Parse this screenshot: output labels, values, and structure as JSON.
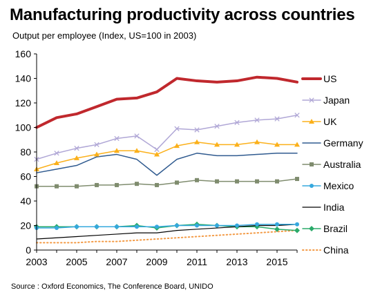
{
  "chart_data": {
    "type": "line",
    "title": "Manufacturing productivity across countries",
    "subtitle": "Output per employee (Index, US=100 in 2003)",
    "source": "Source : Oxford Economics, The Conference Board, UNIDO",
    "xlim": [
      2003,
      2016
    ],
    "x_ticks": [
      "2003",
      "2005",
      "2007",
      "2009",
      "2011",
      "2013",
      "2015"
    ],
    "ylim": [
      0,
      160
    ],
    "y_ticks": [
      "0",
      "20",
      "40",
      "60",
      "80",
      "100",
      "120",
      "140",
      "160"
    ],
    "grid": false,
    "legend_position": "right",
    "x": [
      2003,
      2004,
      2005,
      2006,
      2007,
      2008,
      2009,
      2010,
      2011,
      2012,
      2013,
      2014,
      2015,
      2016
    ],
    "series": [
      {
        "name": "US",
        "color": "#c0282d",
        "marker": "none",
        "dash": "none",
        "width": 4,
        "values": [
          100,
          108,
          111,
          117,
          123,
          124,
          129,
          140,
          138,
          137,
          138,
          141,
          140,
          137
        ]
      },
      {
        "name": "Japan",
        "color": "#b0a7d6",
        "marker": "x",
        "dash": "none",
        "width": 1.5,
        "values": [
          74,
          79,
          83,
          86,
          91,
          93,
          82,
          99,
          98,
          101,
          104,
          106,
          107,
          110
        ]
      },
      {
        "name": "UK",
        "color": "#fbb01a",
        "marker": "triangle",
        "dash": "none",
        "width": 1.5,
        "values": [
          66,
          71,
          75,
          78,
          81,
          81,
          78,
          85,
          88,
          86,
          86,
          88,
          86,
          86
        ]
      },
      {
        "name": "Germany",
        "color": "#2f5a8f",
        "marker": "none",
        "dash": "none",
        "width": 1.5,
        "values": [
          63,
          66,
          69,
          76,
          78,
          74,
          61,
          74,
          79,
          77,
          77,
          78,
          79,
          79
        ]
      },
      {
        "name": "Australia",
        "color": "#7f8c6e",
        "marker": "square",
        "dash": "none",
        "width": 1.5,
        "values": [
          52,
          52,
          52,
          53,
          53,
          54,
          53,
          55,
          57,
          56,
          56,
          56,
          56,
          58
        ]
      },
      {
        "name": "Mexico",
        "color": "#35a8de",
        "marker": "circle",
        "dash": "none",
        "width": 1.5,
        "values": [
          18,
          18,
          19,
          19,
          19,
          19,
          19,
          20,
          20,
          20,
          20,
          21,
          21,
          21
        ]
      },
      {
        "name": "India",
        "color": "#000000",
        "marker": "none",
        "dash": "none",
        "width": 1.2,
        "values": [
          9,
          10,
          11,
          12,
          13,
          14,
          14,
          16,
          17,
          18,
          19,
          20,
          20,
          21
        ]
      },
      {
        "name": "Brazil",
        "color": "#2aaa6a",
        "marker": "diamond",
        "dash": "none",
        "width": 1.5,
        "values": [
          19,
          19,
          19,
          19,
          19,
          20,
          18,
          20,
          21,
          20,
          19,
          19,
          17,
          16
        ]
      },
      {
        "name": "China",
        "color": "#f39a45",
        "marker": "none",
        "dash": "dot",
        "width": 2,
        "values": [
          6,
          6,
          6,
          7,
          7,
          8,
          9,
          10,
          11,
          12,
          13,
          14,
          15,
          16
        ]
      }
    ]
  }
}
